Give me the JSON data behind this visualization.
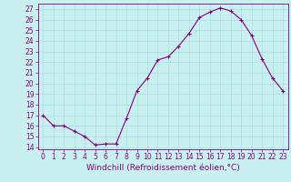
{
  "hours": [
    0,
    1,
    2,
    3,
    4,
    5,
    6,
    7,
    8,
    9,
    10,
    11,
    12,
    13,
    14,
    15,
    16,
    17,
    18,
    19,
    20,
    21,
    22,
    23
  ],
  "values": [
    17,
    16,
    16,
    15.5,
    15,
    14.2,
    14.3,
    14.3,
    16.7,
    19.3,
    20.5,
    22.2,
    22.5,
    23.5,
    24.7,
    26.2,
    26.7,
    27.1,
    26.8,
    26.0,
    24.5,
    22.3,
    20.5,
    19.3
  ],
  "line_color": "#800080",
  "marker": "+",
  "bg_color": "#c8f0f0",
  "grid_color": "#aadddd",
  "ylim": [
    13.8,
    27.5
  ],
  "yticks": [
    14,
    15,
    16,
    17,
    18,
    19,
    20,
    21,
    22,
    23,
    24,
    25,
    26,
    27
  ],
  "xlim": [
    -0.5,
    23.5
  ],
  "xticks": [
    0,
    1,
    2,
    3,
    4,
    5,
    6,
    7,
    8,
    9,
    10,
    11,
    12,
    13,
    14,
    15,
    16,
    17,
    18,
    19,
    20,
    21,
    22,
    23
  ],
  "tick_color": "#800080",
  "tick_fontsize": 5.5,
  "xlabel": "Windchill (Refroidissement éolien,°C)",
  "xlabel_fontsize": 6.5,
  "spine_color": "#800080"
}
